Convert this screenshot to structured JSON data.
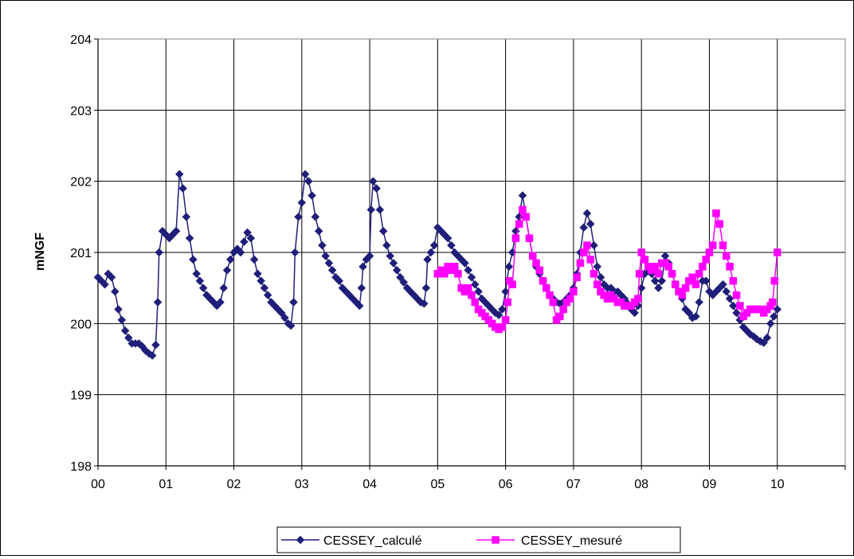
{
  "chart_data": {
    "type": "line",
    "title": "",
    "xlabel": "",
    "ylabel": "mNGF",
    "xlim": [
      0,
      11
    ],
    "ylim": [
      198,
      204
    ],
    "x_ticks": [
      "00",
      "01",
      "02",
      "03",
      "04",
      "05",
      "06",
      "07",
      "08",
      "09",
      "10"
    ],
    "y_ticks": [
      "198",
      "199",
      "200",
      "201",
      "202",
      "203",
      "204"
    ],
    "grid": true,
    "legend_position": "bottom",
    "series": [
      {
        "name": "CESSEY_calculé",
        "color": "#1f1f7a",
        "marker": "diamond",
        "points": [
          [
            0.0,
            200.65
          ],
          [
            0.05,
            200.6
          ],
          [
            0.1,
            200.55
          ],
          [
            0.15,
            200.7
          ],
          [
            0.2,
            200.65
          ],
          [
            0.25,
            200.45
          ],
          [
            0.3,
            200.2
          ],
          [
            0.35,
            200.05
          ],
          [
            0.4,
            199.9
          ],
          [
            0.45,
            199.8
          ],
          [
            0.5,
            199.72
          ],
          [
            0.55,
            199.72
          ],
          [
            0.6,
            199.72
          ],
          [
            0.65,
            199.68
          ],
          [
            0.7,
            199.62
          ],
          [
            0.75,
            199.58
          ],
          [
            0.8,
            199.55
          ],
          [
            0.85,
            199.7
          ],
          [
            0.88,
            200.3
          ],
          [
            0.9,
            201.0
          ],
          [
            0.95,
            201.3
          ],
          [
            1.0,
            201.25
          ],
          [
            1.05,
            201.2
          ],
          [
            1.1,
            201.25
          ],
          [
            1.15,
            201.3
          ],
          [
            1.2,
            202.1
          ],
          [
            1.25,
            201.9
          ],
          [
            1.3,
            201.5
          ],
          [
            1.35,
            201.2
          ],
          [
            1.4,
            200.9
          ],
          [
            1.45,
            200.7
          ],
          [
            1.5,
            200.6
          ],
          [
            1.55,
            200.5
          ],
          [
            1.6,
            200.4
          ],
          [
            1.65,
            200.35
          ],
          [
            1.7,
            200.3
          ],
          [
            1.75,
            200.25
          ],
          [
            1.8,
            200.3
          ],
          [
            1.85,
            200.5
          ],
          [
            1.9,
            200.75
          ],
          [
            1.95,
            200.9
          ],
          [
            2.0,
            201.0
          ],
          [
            2.05,
            201.05
          ],
          [
            2.1,
            201.0
          ],
          [
            2.15,
            201.15
          ],
          [
            2.2,
            201.28
          ],
          [
            2.25,
            201.2
          ],
          [
            2.3,
            200.9
          ],
          [
            2.35,
            200.7
          ],
          [
            2.4,
            200.6
          ],
          [
            2.45,
            200.5
          ],
          [
            2.5,
            200.4
          ],
          [
            2.55,
            200.3
          ],
          [
            2.6,
            200.25
          ],
          [
            2.65,
            200.2
          ],
          [
            2.7,
            200.15
          ],
          [
            2.75,
            200.08
          ],
          [
            2.8,
            200.0
          ],
          [
            2.84,
            199.97
          ],
          [
            2.88,
            200.3
          ],
          [
            2.9,
            201.0
          ],
          [
            2.95,
            201.5
          ],
          [
            3.0,
            201.7
          ],
          [
            3.05,
            202.1
          ],
          [
            3.1,
            202.0
          ],
          [
            3.15,
            201.8
          ],
          [
            3.2,
            201.5
          ],
          [
            3.25,
            201.3
          ],
          [
            3.3,
            201.1
          ],
          [
            3.35,
            200.95
          ],
          [
            3.4,
            200.85
          ],
          [
            3.45,
            200.75
          ],
          [
            3.5,
            200.65
          ],
          [
            3.55,
            200.6
          ],
          [
            3.6,
            200.5
          ],
          [
            3.65,
            200.45
          ],
          [
            3.7,
            200.4
          ],
          [
            3.75,
            200.35
          ],
          [
            3.8,
            200.3
          ],
          [
            3.85,
            200.25
          ],
          [
            3.88,
            200.5
          ],
          [
            3.9,
            200.8
          ],
          [
            3.95,
            200.9
          ],
          [
            4.0,
            200.95
          ],
          [
            4.02,
            201.6
          ],
          [
            4.05,
            202.0
          ],
          [
            4.1,
            201.9
          ],
          [
            4.15,
            201.6
          ],
          [
            4.2,
            201.3
          ],
          [
            4.25,
            201.1
          ],
          [
            4.3,
            200.95
          ],
          [
            4.35,
            200.85
          ],
          [
            4.4,
            200.75
          ],
          [
            4.45,
            200.65
          ],
          [
            4.5,
            200.58
          ],
          [
            4.55,
            200.5
          ],
          [
            4.6,
            200.45
          ],
          [
            4.65,
            200.4
          ],
          [
            4.7,
            200.35
          ],
          [
            4.75,
            200.3
          ],
          [
            4.8,
            200.28
          ],
          [
            4.83,
            200.5
          ],
          [
            4.85,
            200.9
          ],
          [
            4.9,
            201.0
          ],
          [
            4.95,
            201.1
          ],
          [
            5.0,
            201.35
          ],
          [
            5.05,
            201.3
          ],
          [
            5.1,
            201.25
          ],
          [
            5.15,
            201.2
          ],
          [
            5.2,
            201.1
          ],
          [
            5.25,
            201.0
          ],
          [
            5.3,
            200.95
          ],
          [
            5.35,
            200.9
          ],
          [
            5.4,
            200.85
          ],
          [
            5.45,
            200.75
          ],
          [
            5.5,
            200.65
          ],
          [
            5.55,
            200.55
          ],
          [
            5.6,
            200.45
          ],
          [
            5.65,
            200.35
          ],
          [
            5.7,
            200.3
          ],
          [
            5.75,
            200.25
          ],
          [
            5.8,
            200.2
          ],
          [
            5.85,
            200.15
          ],
          [
            5.9,
            200.12
          ],
          [
            5.95,
            200.2
          ],
          [
            6.0,
            200.45
          ],
          [
            6.05,
            200.8
          ],
          [
            6.1,
            201.0
          ],
          [
            6.15,
            201.3
          ],
          [
            6.2,
            201.5
          ],
          [
            6.25,
            201.8
          ],
          [
            6.3,
            201.5
          ],
          [
            6.35,
            201.2
          ],
          [
            6.4,
            200.95
          ],
          [
            6.45,
            200.8
          ],
          [
            6.5,
            200.7
          ],
          [
            6.55,
            200.6
          ],
          [
            6.6,
            200.5
          ],
          [
            6.65,
            200.4
          ],
          [
            6.7,
            200.35
          ],
          [
            6.75,
            200.3
          ],
          [
            6.8,
            200.28
          ],
          [
            6.85,
            200.3
          ],
          [
            6.9,
            200.35
          ],
          [
            6.95,
            200.4
          ],
          [
            7.0,
            200.5
          ],
          [
            7.05,
            200.7
          ],
          [
            7.1,
            201.0
          ],
          [
            7.15,
            201.35
          ],
          [
            7.2,
            201.55
          ],
          [
            7.25,
            201.4
          ],
          [
            7.3,
            201.1
          ],
          [
            7.35,
            200.8
          ],
          [
            7.4,
            200.65
          ],
          [
            7.45,
            200.55
          ],
          [
            7.5,
            200.5
          ],
          [
            7.55,
            200.5
          ],
          [
            7.6,
            200.45
          ],
          [
            7.65,
            200.45
          ],
          [
            7.7,
            200.4
          ],
          [
            7.75,
            200.35
          ],
          [
            7.8,
            200.28
          ],
          [
            7.85,
            200.2
          ],
          [
            7.9,
            200.15
          ],
          [
            7.95,
            200.25
          ],
          [
            8.0,
            200.5
          ],
          [
            8.05,
            200.7
          ],
          [
            8.1,
            200.75
          ],
          [
            8.15,
            200.7
          ],
          [
            8.2,
            200.6
          ],
          [
            8.25,
            200.5
          ],
          [
            8.3,
            200.6
          ],
          [
            8.35,
            200.95
          ],
          [
            8.4,
            200.85
          ],
          [
            8.45,
            200.7
          ],
          [
            8.5,
            200.55
          ],
          [
            8.55,
            200.45
          ],
          [
            8.6,
            200.35
          ],
          [
            8.65,
            200.2
          ],
          [
            8.7,
            200.15
          ],
          [
            8.75,
            200.08
          ],
          [
            8.8,
            200.1
          ],
          [
            8.85,
            200.3
          ],
          [
            8.9,
            200.6
          ],
          [
            8.95,
            200.6
          ],
          [
            9.0,
            200.45
          ],
          [
            9.05,
            200.4
          ],
          [
            9.1,
            200.45
          ],
          [
            9.15,
            200.5
          ],
          [
            9.2,
            200.55
          ],
          [
            9.25,
            200.45
          ],
          [
            9.3,
            200.35
          ],
          [
            9.35,
            200.25
          ],
          [
            9.4,
            200.15
          ],
          [
            9.45,
            200.05
          ],
          [
            9.5,
            199.95
          ],
          [
            9.55,
            199.9
          ],
          [
            9.6,
            199.85
          ],
          [
            9.65,
            199.82
          ],
          [
            9.7,
            199.78
          ],
          [
            9.75,
            199.75
          ],
          [
            9.8,
            199.73
          ],
          [
            9.85,
            199.8
          ],
          [
            9.9,
            200.0
          ],
          [
            9.95,
            200.1
          ],
          [
            10.0,
            200.2
          ]
        ]
      },
      {
        "name": "CESSEY_mesuré",
        "color": "#ff00ff",
        "marker": "square",
        "points": [
          [
            5.0,
            200.7
          ],
          [
            5.05,
            200.75
          ],
          [
            5.1,
            200.7
          ],
          [
            5.15,
            200.8
          ],
          [
            5.2,
            200.75
          ],
          [
            5.25,
            200.8
          ],
          [
            5.3,
            200.7
          ],
          [
            5.35,
            200.5
          ],
          [
            5.4,
            200.45
          ],
          [
            5.45,
            200.5
          ],
          [
            5.5,
            200.4
          ],
          [
            5.55,
            200.3
          ],
          [
            5.6,
            200.2
          ],
          [
            5.65,
            200.15
          ],
          [
            5.7,
            200.1
          ],
          [
            5.75,
            200.05
          ],
          [
            5.8,
            200.0
          ],
          [
            5.85,
            199.95
          ],
          [
            5.9,
            199.92
          ],
          [
            5.95,
            199.95
          ],
          [
            6.0,
            200.05
          ],
          [
            6.03,
            200.3
          ],
          [
            6.06,
            200.6
          ],
          [
            6.1,
            200.55
          ],
          [
            6.15,
            201.2
          ],
          [
            6.2,
            201.4
          ],
          [
            6.25,
            201.6
          ],
          [
            6.3,
            201.5
          ],
          [
            6.35,
            201.2
          ],
          [
            6.4,
            200.95
          ],
          [
            6.45,
            200.85
          ],
          [
            6.5,
            200.75
          ],
          [
            6.55,
            200.6
          ],
          [
            6.6,
            200.5
          ],
          [
            6.65,
            200.4
          ],
          [
            6.7,
            200.3
          ],
          [
            6.75,
            200.05
          ],
          [
            6.8,
            200.1
          ],
          [
            6.85,
            200.2
          ],
          [
            6.9,
            200.3
          ],
          [
            6.95,
            200.35
          ],
          [
            7.0,
            200.45
          ],
          [
            7.05,
            200.65
          ],
          [
            7.1,
            200.85
          ],
          [
            7.15,
            201.0
          ],
          [
            7.2,
            201.1
          ],
          [
            7.25,
            200.9
          ],
          [
            7.3,
            200.7
          ],
          [
            7.35,
            200.55
          ],
          [
            7.4,
            200.45
          ],
          [
            7.45,
            200.4
          ],
          [
            7.5,
            200.35
          ],
          [
            7.55,
            200.4
          ],
          [
            7.6,
            200.35
          ],
          [
            7.65,
            200.3
          ],
          [
            7.7,
            200.3
          ],
          [
            7.75,
            200.25
          ],
          [
            7.8,
            200.25
          ],
          [
            7.85,
            200.25
          ],
          [
            7.9,
            200.3
          ],
          [
            7.95,
            200.35
          ],
          [
            7.97,
            200.7
          ],
          [
            8.0,
            201.0
          ],
          [
            8.05,
            200.9
          ],
          [
            8.1,
            200.8
          ],
          [
            8.15,
            200.75
          ],
          [
            8.2,
            200.8
          ],
          [
            8.25,
            200.7
          ],
          [
            8.3,
            200.85
          ],
          [
            8.35,
            200.85
          ],
          [
            8.4,
            200.8
          ],
          [
            8.45,
            200.7
          ],
          [
            8.5,
            200.55
          ],
          [
            8.55,
            200.45
          ],
          [
            8.6,
            200.4
          ],
          [
            8.65,
            200.5
          ],
          [
            8.7,
            200.6
          ],
          [
            8.75,
            200.65
          ],
          [
            8.8,
            200.55
          ],
          [
            8.85,
            200.7
          ],
          [
            8.9,
            200.8
          ],
          [
            8.95,
            200.9
          ],
          [
            9.0,
            201.0
          ],
          [
            9.05,
            201.1
          ],
          [
            9.1,
            201.55
          ],
          [
            9.15,
            201.4
          ],
          [
            9.2,
            201.1
          ],
          [
            9.25,
            200.95
          ],
          [
            9.3,
            200.8
          ],
          [
            9.35,
            200.6
          ],
          [
            9.4,
            200.4
          ],
          [
            9.45,
            200.25
          ],
          [
            9.5,
            200.1
          ],
          [
            9.55,
            200.15
          ],
          [
            9.6,
            200.2
          ],
          [
            9.65,
            200.2
          ],
          [
            9.7,
            200.2
          ],
          [
            9.75,
            200.2
          ],
          [
            9.8,
            200.15
          ],
          [
            9.85,
            200.2
          ],
          [
            9.9,
            200.25
          ],
          [
            9.93,
            200.3
          ],
          [
            9.96,
            200.6
          ],
          [
            10.0,
            201.0
          ]
        ]
      }
    ]
  }
}
